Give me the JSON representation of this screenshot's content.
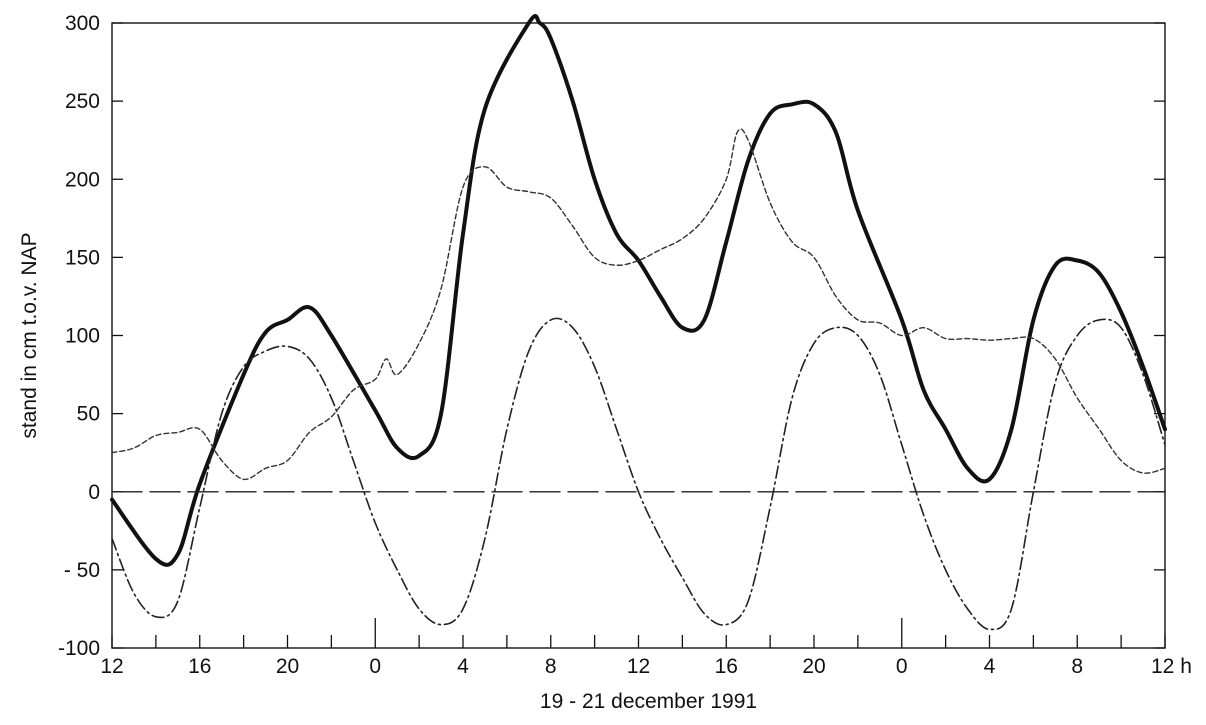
{
  "chart_data": {
    "type": "line",
    "title": "",
    "xlabel": "19 - 21 december 1991",
    "ylabel": "stand in cm t.o.v. NAP",
    "x_unit": "h",
    "ylim": [
      -100,
      300
    ],
    "y_ticks": [
      300,
      250,
      200,
      150,
      100,
      50,
      0,
      -50,
      -100
    ],
    "y_tick_labels": [
      "300",
      "250",
      "200",
      "150",
      "100",
      "50",
      "0",
      "- 50",
      "-100"
    ],
    "x_tick_labels": [
      "12",
      "16",
      "20",
      "0",
      "4",
      "8",
      "12",
      "16",
      "20",
      "0",
      "4",
      "8",
      "12 h"
    ],
    "grid": false,
    "legend": "none",
    "series": [
      {
        "style": "solid-thick",
        "x": [
          "19 Dec 12:00",
          "19 Dec 14:00",
          "19 Dec 15:00",
          "19 Dec 16:00",
          "19 Dec 18:00",
          "19 Dec 19:00",
          "19 Dec 20:00",
          "19 Dec 21:00",
          "19 Dec 22:00",
          "20 Dec 00:00",
          "20 Dec 01:00",
          "20 Dec 02:00",
          "20 Dec 03:00",
          "20 Dec 04:00",
          "20 Dec 05:00",
          "20 Dec 07:00",
          "20 Dec 07:30",
          "20 Dec 08:00",
          "20 Dec 09:00",
          "20 Dec 10:00",
          "20 Dec 11:00",
          "20 Dec 12:00",
          "20 Dec 13:00",
          "20 Dec 14:00",
          "20 Dec 15:00",
          "20 Dec 16:00",
          "20 Dec 17:00",
          "20 Dec 18:00",
          "20 Dec 19:00",
          "20 Dec 20:00",
          "20 Dec 21:00",
          "20 Dec 22:00",
          "21 Dec 00:00",
          "21 Dec 01:00",
          "21 Dec 02:00",
          "21 Dec 03:00",
          "21 Dec 04:00",
          "21 Dec 05:00",
          "21 Dec 06:00",
          "21 Dec 07:00",
          "21 Dec 08:00",
          "21 Dec 09:00",
          "21 Dec 10:00",
          "21 Dec 11:00",
          "21 Dec 12:00"
        ],
        "values": [
          -5,
          -43,
          -40,
          5,
          75,
          102,
          110,
          118,
          100,
          52,
          28,
          23,
          50,
          165,
          245,
          300,
          300,
          290,
          250,
          200,
          165,
          148,
          125,
          105,
          110,
          160,
          212,
          242,
          248,
          248,
          230,
          180,
          110,
          65,
          40,
          15,
          8,
          40,
          110,
          145,
          148,
          140,
          115,
          80,
          40
        ]
      },
      {
        "style": "dash-dot",
        "x": [
          "19 Dec 12:00",
          "19 Dec 13:00",
          "19 Dec 14:00",
          "19 Dec 15:00",
          "19 Dec 16:00",
          "19 Dec 17:00",
          "19 Dec 18:00",
          "19 Dec 19:00",
          "19 Dec 20:00",
          "19 Dec 21:00",
          "19 Dec 22:00",
          "19 Dec 23:00",
          "20 Dec 00:00",
          "20 Dec 01:00",
          "20 Dec 02:00",
          "20 Dec 03:00",
          "20 Dec 04:00",
          "20 Dec 05:00",
          "20 Dec 06:00",
          "20 Dec 07:00",
          "20 Dec 08:00",
          "20 Dec 09:00",
          "20 Dec 10:00",
          "20 Dec 11:00",
          "20 Dec 12:00",
          "20 Dec 13:00",
          "20 Dec 14:00",
          "20 Dec 15:00",
          "20 Dec 16:00",
          "20 Dec 17:00",
          "20 Dec 18:00",
          "20 Dec 19:00",
          "20 Dec 20:00",
          "20 Dec 21:00",
          "20 Dec 22:00",
          "20 Dec 23:00",
          "21 Dec 00:00",
          "21 Dec 01:00",
          "21 Dec 02:00",
          "21 Dec 03:00",
          "21 Dec 04:00",
          "21 Dec 05:00",
          "21 Dec 06:00",
          "21 Dec 07:00",
          "21 Dec 08:00",
          "21 Dec 09:00",
          "21 Dec 10:00",
          "21 Dec 11:00",
          "21 Dec 12:00"
        ],
        "values": [
          -30,
          -65,
          -80,
          -70,
          -10,
          50,
          80,
          90,
          93,
          85,
          60,
          20,
          -20,
          -50,
          -75,
          -85,
          -75,
          -30,
          40,
          90,
          110,
          105,
          80,
          40,
          0,
          -30,
          -55,
          -78,
          -85,
          -70,
          -10,
          60,
          95,
          105,
          100,
          75,
          30,
          -15,
          -50,
          -75,
          -88,
          -75,
          0,
          70,
          100,
          110,
          105,
          75,
          30
        ]
      },
      {
        "style": "dashed",
        "x": [
          "19 Dec 12:00",
          "19 Dec 13:00",
          "19 Dec 14:00",
          "19 Dec 15:00",
          "19 Dec 16:00",
          "19 Dec 17:00",
          "19 Dec 18:00",
          "19 Dec 19:00",
          "19 Dec 20:00",
          "19 Dec 21:00",
          "19 Dec 22:00",
          "19 Dec 23:00",
          "20 Dec 00:00",
          "20 Dec 00:30",
          "20 Dec 01:00",
          "20 Dec 02:00",
          "20 Dec 03:00",
          "20 Dec 04:00",
          "20 Dec 05:00",
          "20 Dec 06:00",
          "20 Dec 07:00",
          "20 Dec 08:00",
          "20 Dec 09:00",
          "20 Dec 10:00",
          "20 Dec 11:00",
          "20 Dec 12:00",
          "20 Dec 13:00",
          "20 Dec 14:00",
          "20 Dec 15:00",
          "20 Dec 16:00",
          "20 Dec 16:30",
          "20 Dec 17:00",
          "20 Dec 18:00",
          "20 Dec 19:00",
          "20 Dec 20:00",
          "20 Dec 21:00",
          "20 Dec 22:00",
          "20 Dec 23:00",
          "21 Dec 00:00",
          "21 Dec 01:00",
          "21 Dec 02:00",
          "21 Dec 03:00",
          "21 Dec 04:00",
          "21 Dec 05:00",
          "21 Dec 06:00",
          "21 Dec 07:00",
          "21 Dec 08:00",
          "21 Dec 09:00",
          "21 Dec 10:00",
          "21 Dec 11:00",
          "21 Dec 12:00"
        ],
        "values": [
          25,
          28,
          36,
          38,
          40,
          20,
          8,
          15,
          20,
          38,
          48,
          65,
          72,
          85,
          75,
          95,
          130,
          195,
          208,
          195,
          192,
          188,
          170,
          150,
          145,
          148,
          155,
          162,
          175,
          200,
          230,
          225,
          185,
          160,
          150,
          125,
          110,
          108,
          100,
          105,
          98,
          98,
          97,
          98,
          98,
          85,
          60,
          40,
          20,
          12,
          15
        ]
      },
      {
        "style": "long-dash",
        "x": [
          "19 Dec 12:00",
          "21 Dec 12:00"
        ],
        "values": [
          0,
          0
        ]
      }
    ]
  }
}
